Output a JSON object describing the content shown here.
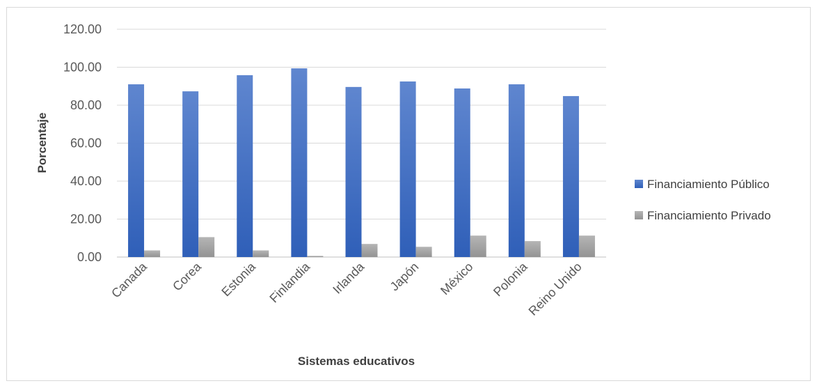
{
  "chart_data": {
    "type": "bar",
    "xlabel": "Sistemas educativos",
    "ylabel": "Porcentaje",
    "categories": [
      "Canada",
      "Corea",
      "Estonia",
      "Finlandia",
      "Irlanda",
      "Japón",
      "México",
      "Polonia",
      "Reino Unido"
    ],
    "series": [
      {
        "name": "Financiamiento Público",
        "color": "#4472C4",
        "values": [
          91.0,
          87.3,
          95.8,
          99.4,
          89.6,
          92.5,
          88.8,
          91.0,
          84.8
        ]
      },
      {
        "name": "Financiamiento Privado",
        "color": "#A5A5A5",
        "values": [
          3.5,
          10.5,
          3.5,
          0.6,
          6.9,
          5.4,
          11.3,
          8.4,
          11.3
        ]
      }
    ],
    "ylim": [
      0,
      120
    ],
    "yticks": [
      "0.00",
      "20.00",
      "40.00",
      "60.00",
      "80.00",
      "100.00",
      "120.00"
    ],
    "grid": true,
    "legend_position": "right"
  }
}
